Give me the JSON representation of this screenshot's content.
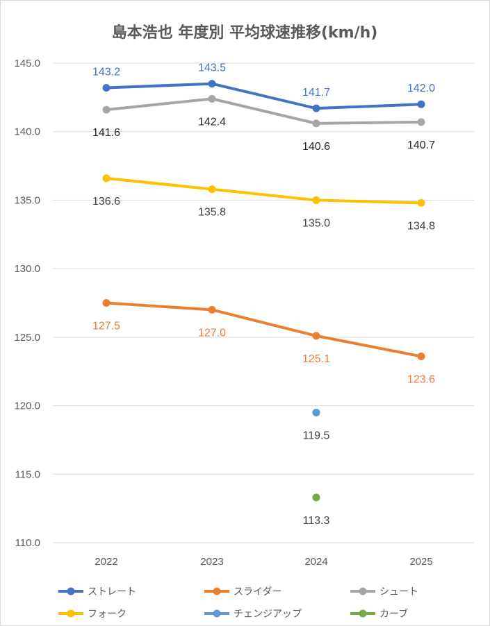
{
  "chart_data": {
    "type": "line",
    "title": "島本浩也 年度別 平均球速推移(km/h)",
    "categories": [
      "2022",
      "2023",
      "2024",
      "2025"
    ],
    "ylim": [
      110,
      145
    ],
    "yticks": [
      "110.0",
      "115.0",
      "120.0",
      "125.0",
      "130.0",
      "135.0",
      "140.0",
      "145.0"
    ],
    "grid": true,
    "legend_position": "bottom",
    "series": [
      {
        "name": "ストレート",
        "color": "#4472C4",
        "values": [
          143.2,
          143.5,
          141.7,
          142.0
        ],
        "labels": [
          "143.2",
          "143.5",
          "141.7",
          "142.0"
        ],
        "label_pos": "above",
        "label_color": "#4472C4"
      },
      {
        "name": "スライダー",
        "color": "#ED7D31",
        "values": [
          127.5,
          127.0,
          125.1,
          123.6
        ],
        "labels": [
          "127.5",
          "127.0",
          "125.1",
          "123.6"
        ],
        "label_pos": "below",
        "label_color": "#ED7D31"
      },
      {
        "name": "シュート",
        "color": "#A5A5A5",
        "values": [
          141.6,
          142.4,
          140.6,
          140.7
        ],
        "labels": [
          "141.6",
          "142.4",
          "140.6",
          "140.7"
        ],
        "label_pos": "below",
        "label_color": "#262626"
      },
      {
        "name": "フォーク",
        "color": "#FFC000",
        "values": [
          136.6,
          135.8,
          135.0,
          134.8
        ],
        "labels": [
          "136.6",
          "135.8",
          "135.0",
          "134.8"
        ],
        "label_pos": "below",
        "label_color": "#404040"
      },
      {
        "name": "チェンジアップ",
        "color": "#5B9BD5",
        "values": [
          null,
          null,
          119.5,
          null
        ],
        "labels": [
          null,
          null,
          "119.5",
          null
        ],
        "label_pos": "below",
        "label_color": "#404040"
      },
      {
        "name": "カーブ",
        "color": "#70AD47",
        "values": [
          null,
          null,
          113.3,
          null
        ],
        "labels": [
          null,
          null,
          "113.3",
          null
        ],
        "label_pos": "below",
        "label_color": "#404040"
      }
    ]
  }
}
